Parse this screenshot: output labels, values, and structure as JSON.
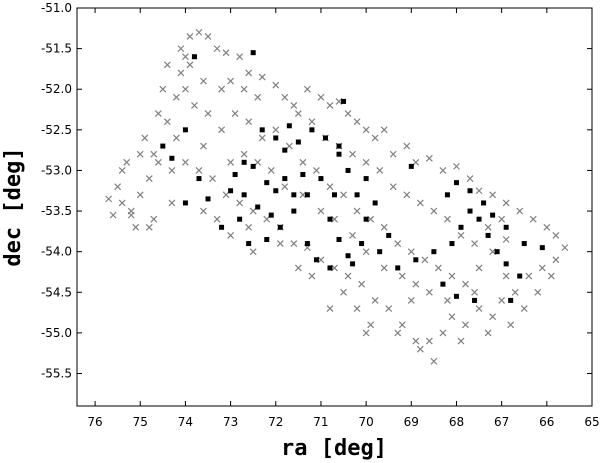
{
  "chart_data": {
    "type": "scatter",
    "title": "",
    "xlabel": "ra [deg]",
    "ylabel": "dec [deg]",
    "xlim": [
      76.4,
      65.0
    ],
    "ylim": [
      -55.9,
      -51.0
    ],
    "x_reversed": true,
    "x_ticks": [
      76,
      75,
      74,
      73,
      72,
      71,
      70,
      69,
      68,
      67,
      66,
      65
    ],
    "y_ticks": [
      -51.0,
      -51.5,
      -52.0,
      -52.5,
      -53.0,
      -53.5,
      -54.0,
      -54.5,
      -55.0,
      -55.5
    ],
    "x_tick_labels": [
      "76",
      "75",
      "74",
      "73",
      "72",
      "71",
      "70",
      "69",
      "68",
      "67",
      "66",
      "65"
    ],
    "y_tick_labels": [
      "-51.0",
      "-51.5",
      "-52.0",
      "-52.5",
      "-53.0",
      "-53.5",
      "-54.0",
      "-54.5",
      "-55.0",
      "-55.5"
    ],
    "grid": false,
    "legend": "none",
    "series": [
      {
        "marker": "x",
        "color": "#808080",
        "points": [
          [
            75.7,
            -53.35
          ],
          [
            75.5,
            -53.2
          ],
          [
            75.2,
            -53.5
          ],
          [
            75.6,
            -53.55
          ],
          [
            75.0,
            -53.3
          ],
          [
            74.8,
            -53.1
          ],
          [
            75.1,
            -53.7
          ],
          [
            74.9,
            -52.6
          ],
          [
            74.7,
            -52.8
          ],
          [
            75.0,
            -52.8
          ],
          [
            74.6,
            -52.3
          ],
          [
            74.4,
            -52.4
          ],
          [
            74.2,
            -52.1
          ],
          [
            74.5,
            -52.0
          ],
          [
            74.0,
            -52.0
          ],
          [
            74.1,
            -51.8
          ],
          [
            73.9,
            -51.7
          ],
          [
            74.1,
            -51.5
          ],
          [
            73.9,
            -51.35
          ],
          [
            73.7,
            -51.3
          ],
          [
            73.5,
            -51.35
          ],
          [
            73.3,
            -51.5
          ],
          [
            73.1,
            -51.55
          ],
          [
            72.8,
            -51.6
          ],
          [
            72.6,
            -51.8
          ],
          [
            73.0,
            -51.9
          ],
          [
            72.3,
            -51.85
          ],
          [
            72.0,
            -51.95
          ],
          [
            71.8,
            -52.1
          ],
          [
            71.6,
            -52.2
          ],
          [
            71.3,
            -52.0
          ],
          [
            71.0,
            -52.1
          ],
          [
            70.8,
            -52.2
          ],
          [
            70.6,
            -52.15
          ],
          [
            70.4,
            -52.3
          ],
          [
            70.2,
            -52.4
          ],
          [
            70.0,
            -52.5
          ],
          [
            69.8,
            -52.6
          ],
          [
            69.6,
            -52.5
          ],
          [
            69.4,
            -52.8
          ],
          [
            69.1,
            -52.7
          ],
          [
            68.9,
            -52.9
          ],
          [
            68.6,
            -52.85
          ],
          [
            68.3,
            -53.0
          ],
          [
            68.0,
            -52.95
          ],
          [
            67.7,
            -53.1
          ],
          [
            67.5,
            -53.25
          ],
          [
            67.2,
            -53.3
          ],
          [
            66.9,
            -53.4
          ],
          [
            66.6,
            -53.5
          ],
          [
            66.3,
            -53.6
          ],
          [
            66.0,
            -53.7
          ],
          [
            65.8,
            -53.8
          ],
          [
            65.6,
            -53.95
          ],
          [
            65.8,
            -54.1
          ],
          [
            66.1,
            -54.2
          ],
          [
            66.4,
            -54.3
          ],
          [
            66.7,
            -54.5
          ],
          [
            67.0,
            -54.6
          ],
          [
            67.2,
            -54.8
          ],
          [
            67.5,
            -54.7
          ],
          [
            67.8,
            -54.9
          ],
          [
            68.1,
            -54.8
          ],
          [
            68.3,
            -55.0
          ],
          [
            68.6,
            -55.1
          ],
          [
            68.9,
            -55.1
          ],
          [
            69.2,
            -54.9
          ],
          [
            69.5,
            -54.7
          ],
          [
            69.8,
            -54.6
          ],
          [
            70.1,
            -54.4
          ],
          [
            70.4,
            -54.3
          ],
          [
            70.7,
            -54.2
          ],
          [
            71.0,
            -54.1
          ],
          [
            71.3,
            -53.95
          ],
          [
            71.6,
            -53.9
          ],
          [
            71.9,
            -53.7
          ],
          [
            72.2,
            -53.6
          ],
          [
            72.5,
            -53.5
          ],
          [
            72.8,
            -53.4
          ],
          [
            73.1,
            -53.3
          ],
          [
            73.4,
            -53.1
          ],
          [
            73.7,
            -53.0
          ],
          [
            74.0,
            -52.9
          ],
          [
            74.3,
            -53.0
          ],
          [
            73.6,
            -52.7
          ],
          [
            73.2,
            -52.5
          ],
          [
            72.9,
            -52.3
          ],
          [
            72.6,
            -52.4
          ],
          [
            72.3,
            -52.6
          ],
          [
            72.0,
            -52.5
          ],
          [
            71.7,
            -52.7
          ],
          [
            71.4,
            -52.9
          ],
          [
            71.1,
            -53.0
          ],
          [
            70.8,
            -53.2
          ],
          [
            70.5,
            -53.3
          ],
          [
            70.2,
            -53.5
          ],
          [
            69.9,
            -53.6
          ],
          [
            69.6,
            -53.7
          ],
          [
            69.3,
            -53.9
          ],
          [
            69.0,
            -54.0
          ],
          [
            68.7,
            -54.1
          ],
          [
            68.4,
            -54.2
          ],
          [
            68.1,
            -54.3
          ],
          [
            67.8,
            -54.4
          ],
          [
            67.5,
            -54.2
          ],
          [
            67.2,
            -54.0
          ],
          [
            66.9,
            -53.85
          ],
          [
            68.6,
            -54.5
          ],
          [
            68.9,
            -54.4
          ],
          [
            69.2,
            -54.3
          ],
          [
            69.6,
            -54.2
          ],
          [
            70.0,
            -54.0
          ],
          [
            70.3,
            -53.8
          ],
          [
            70.7,
            -53.6
          ],
          [
            71.0,
            -53.5
          ],
          [
            71.4,
            -53.3
          ],
          [
            71.8,
            -53.2
          ],
          [
            72.1,
            -53.0
          ],
          [
            72.4,
            -52.9
          ],
          [
            72.7,
            -52.8
          ],
          [
            73.0,
            -52.9
          ],
          [
            73.5,
            -52.3
          ],
          [
            73.8,
            -52.2
          ],
          [
            74.2,
            -52.6
          ],
          [
            74.6,
            -52.9
          ],
          [
            75.3,
            -52.9
          ],
          [
            75.4,
            -53.0
          ],
          [
            74.3,
            -53.4
          ],
          [
            74.7,
            -53.6
          ],
          [
            75.2,
            -53.55
          ],
          [
            73.3,
            -53.6
          ],
          [
            73.0,
            -53.8
          ],
          [
            72.5,
            -54.0
          ],
          [
            71.5,
            -54.2
          ],
          [
            71.2,
            -54.3
          ],
          [
            70.5,
            -54.5
          ],
          [
            70.2,
            -54.7
          ],
          [
            69.9,
            -54.9
          ],
          [
            69.3,
            -55.0
          ],
          [
            68.8,
            -55.2
          ],
          [
            68.5,
            -55.35
          ],
          [
            67.9,
            -55.1
          ],
          [
            67.3,
            -55.0
          ],
          [
            66.8,
            -54.9
          ],
          [
            66.5,
            -54.7
          ],
          [
            66.2,
            -54.5
          ],
          [
            65.9,
            -54.3
          ],
          [
            67.0,
            -53.6
          ],
          [
            67.3,
            -53.7
          ],
          [
            67.6,
            -53.9
          ],
          [
            67.9,
            -53.8
          ],
          [
            68.2,
            -53.6
          ],
          [
            68.5,
            -53.5
          ],
          [
            68.8,
            -53.4
          ],
          [
            69.1,
            -53.3
          ],
          [
            69.4,
            -53.2
          ],
          [
            69.7,
            -53.0
          ],
          [
            70.0,
            -52.9
          ],
          [
            70.3,
            -52.8
          ],
          [
            70.6,
            -52.7
          ],
          [
            70.9,
            -52.6
          ],
          [
            71.2,
            -52.4
          ],
          [
            71.5,
            -52.3
          ],
          [
            72.4,
            -52.1
          ],
          [
            72.7,
            -52.0
          ],
          [
            73.2,
            -52.0
          ],
          [
            73.6,
            -51.9
          ],
          [
            74.4,
            -51.7
          ],
          [
            74.0,
            -51.6
          ],
          [
            71.9,
            -53.9
          ],
          [
            72.6,
            -53.7
          ],
          [
            73.6,
            -53.5
          ],
          [
            74.8,
            -53.7
          ],
          [
            75.4,
            -53.4
          ],
          [
            69.0,
            -54.6
          ],
          [
            68.2,
            -54.6
          ],
          [
            67.6,
            -54.5
          ],
          [
            66.9,
            -54.3
          ],
          [
            70.8,
            -54.7
          ],
          [
            70.0,
            -55.0
          ]
        ]
      },
      {
        "marker": "square",
        "color": "#000000",
        "points": [
          [
            73.8,
            -51.6
          ],
          [
            72.5,
            -51.55
          ],
          [
            70.5,
            -52.15
          ],
          [
            74.0,
            -52.5
          ],
          [
            74.5,
            -52.7
          ],
          [
            74.3,
            -52.85
          ],
          [
            73.7,
            -53.1
          ],
          [
            73.5,
            -53.35
          ],
          [
            73.2,
            -53.7
          ],
          [
            74.0,
            -53.4
          ],
          [
            72.9,
            -53.05
          ],
          [
            72.5,
            -52.95
          ],
          [
            72.3,
            -52.5
          ],
          [
            72.0,
            -52.6
          ],
          [
            71.8,
            -52.75
          ],
          [
            71.5,
            -52.65
          ],
          [
            71.2,
            -52.5
          ],
          [
            70.9,
            -52.6
          ],
          [
            70.6,
            -52.7
          ],
          [
            72.7,
            -53.3
          ],
          [
            72.4,
            -53.45
          ],
          [
            72.1,
            -53.55
          ],
          [
            72.8,
            -53.6
          ],
          [
            72.6,
            -53.9
          ],
          [
            72.2,
            -53.85
          ],
          [
            71.9,
            -53.7
          ],
          [
            71.6,
            -53.5
          ],
          [
            71.3,
            -53.3
          ],
          [
            71.0,
            -53.1
          ],
          [
            70.8,
            -53.6
          ],
          [
            70.6,
            -53.85
          ],
          [
            70.4,
            -54.05
          ],
          [
            70.3,
            -54.15
          ],
          [
            70.1,
            -53.9
          ],
          [
            70.0,
            -53.6
          ],
          [
            70.2,
            -53.3
          ],
          [
            70.4,
            -53.0
          ],
          [
            70.6,
            -52.8
          ],
          [
            71.3,
            -53.9
          ],
          [
            71.1,
            -54.1
          ],
          [
            70.8,
            -54.2
          ],
          [
            69.5,
            -53.8
          ],
          [
            69.3,
            -54.2
          ],
          [
            68.9,
            -54.1
          ],
          [
            68.5,
            -54.0
          ],
          [
            68.1,
            -53.9
          ],
          [
            67.9,
            -53.7
          ],
          [
            67.7,
            -53.5
          ],
          [
            67.5,
            -53.6
          ],
          [
            67.3,
            -53.8
          ],
          [
            67.1,
            -54.0
          ],
          [
            66.9,
            -54.15
          ],
          [
            66.6,
            -54.3
          ],
          [
            68.2,
            -53.3
          ],
          [
            68.0,
            -53.15
          ],
          [
            67.7,
            -53.25
          ],
          [
            67.4,
            -53.4
          ],
          [
            67.2,
            -53.55
          ],
          [
            66.9,
            -53.7
          ],
          [
            66.5,
            -53.9
          ],
          [
            66.1,
            -53.95
          ],
          [
            68.3,
            -54.4
          ],
          [
            68.0,
            -54.55
          ],
          [
            67.6,
            -54.6
          ],
          [
            66.8,
            -54.6
          ],
          [
            69.0,
            -52.95
          ],
          [
            69.8,
            -53.4
          ],
          [
            70.0,
            -53.1
          ],
          [
            71.4,
            -53.05
          ],
          [
            72.0,
            -53.25
          ],
          [
            73.0,
            -53.25
          ],
          [
            72.7,
            -52.9
          ],
          [
            71.7,
            -52.45
          ],
          [
            71.6,
            -53.3
          ],
          [
            71.8,
            -53.1
          ],
          [
            72.2,
            -53.15
          ],
          [
            69.7,
            -54.0
          ],
          [
            70.7,
            -53.3
          ]
        ]
      }
    ]
  }
}
